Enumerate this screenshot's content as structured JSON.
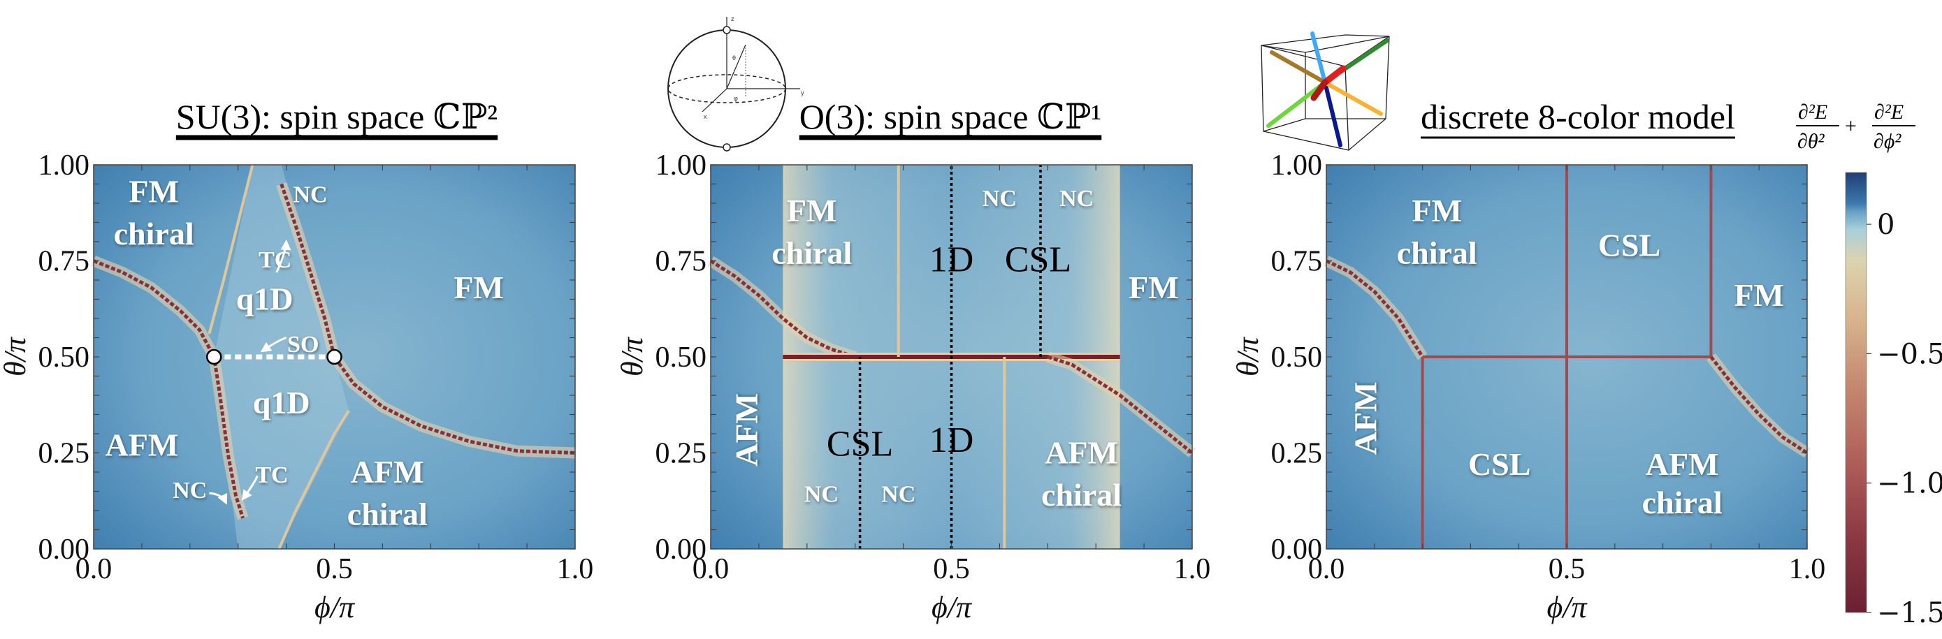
{
  "colors": {
    "background_blue": "#6aa2c6",
    "background_light": "#86b5ce",
    "background_dark": "#3f7eb0",
    "boundary_red": "#8a2f37",
    "boundary_halo": "#e6d2aa",
    "label_white": "#ffffff"
  },
  "icons": {
    "sphere": {
      "name": "bloch-sphere-icon",
      "labels": {
        "z": "z",
        "y": "y",
        "x": "x",
        "theta": "θ",
        "phi": "φ"
      }
    },
    "cube": {
      "name": "eight-color-cube-icon",
      "arrow_colors": [
        "#3fa9f5",
        "#0a1a8c",
        "#a8782a",
        "#f9b233",
        "#2e8b2e",
        "#6fd63a",
        "#e02020",
        "#b01818"
      ]
    }
  },
  "colorbar": {
    "label": "∂²E/∂θ² + ∂²E/∂ϕ²",
    "label_num1": "∂²E",
    "label_den1": "∂θ²",
    "label_plus": "+",
    "label_num2": "∂²E",
    "label_den2": "∂ϕ²",
    "range": [
      -1.5,
      0.2
    ],
    "ticks": [
      0,
      -0.5,
      -1.0,
      -1.5
    ],
    "tick_labels": [
      "0",
      "−0.5",
      "−1.0",
      "−1.5"
    ],
    "colormap": [
      "#213f75",
      "#3b78ad",
      "#6aa2c6",
      "#a8d0d8",
      "#dcd3b0",
      "#d8b48e",
      "#c48a70",
      "#b0605a",
      "#8e3a44",
      "#6a2032"
    ]
  },
  "chart_data": [
    {
      "type": "heatmap",
      "title": "SU(3): spin space ℂℙ²",
      "xlabel": "ϕ/π",
      "ylabel": "θ/π",
      "xlim": [
        0,
        1
      ],
      "ylim": [
        0,
        1
      ],
      "x_ticks": [
        0.0,
        0.5,
        1.0
      ],
      "x_tick_labels": [
        "0.0",
        "0.5",
        "1.0"
      ],
      "y_ticks": [
        0,
        0.25,
        0.5,
        0.75,
        1.0
      ],
      "y_tick_labels": [
        "0.00",
        "0.25",
        "0.50",
        "0.75",
        "1.00"
      ],
      "grid": false,
      "boundaries": [
        {
          "style": "major",
          "points": [
            [
              0,
              0.75
            ],
            [
              0.06,
              0.72
            ],
            [
              0.12,
              0.68
            ],
            [
              0.18,
              0.62
            ],
            [
              0.22,
              0.57
            ],
            [
              0.25,
              0.5
            ],
            [
              0.26,
              0.42
            ],
            [
              0.27,
              0.33
            ],
            [
              0.28,
              0.24
            ],
            [
              0.295,
              0.14
            ],
            [
              0.31,
              0.08
            ]
          ]
        },
        {
          "style": "major",
          "points": [
            [
              0.39,
              0.95
            ],
            [
              0.42,
              0.84
            ],
            [
              0.45,
              0.72
            ],
            [
              0.48,
              0.6
            ],
            [
              0.5,
              0.5
            ],
            [
              0.54,
              0.43
            ],
            [
              0.6,
              0.37
            ],
            [
              0.68,
              0.32
            ],
            [
              0.78,
              0.28
            ],
            [
              0.88,
              0.255
            ],
            [
              1.0,
              0.25
            ]
          ]
        },
        {
          "style": "minor",
          "points": [
            [
              0.24,
              0.56
            ],
            [
              0.27,
              0.7
            ],
            [
              0.3,
              0.85
            ],
            [
              0.33,
              1.0
            ]
          ]
        },
        {
          "style": "minor",
          "points": [
            [
              0.385,
              0.0
            ],
            [
              0.42,
              0.1
            ],
            [
              0.46,
              0.2
            ],
            [
              0.5,
              0.3
            ],
            [
              0.53,
              0.36
            ]
          ]
        },
        {
          "style": "so-dotted",
          "points": [
            [
              0.25,
              0.5
            ],
            [
              0.5,
              0.5
            ]
          ]
        }
      ],
      "markers": [
        [
          0.25,
          0.5
        ],
        [
          0.5,
          0.5
        ]
      ],
      "annotations": [
        {
          "text": "FM",
          "at": [
            0.125,
            0.93
          ],
          "size": "large"
        },
        {
          "text": "chiral",
          "at": [
            0.125,
            0.82
          ],
          "size": "large"
        },
        {
          "text": "NC",
          "at": [
            0.45,
            0.93
          ],
          "size": "small"
        },
        {
          "text": "TC",
          "at": [
            0.377,
            0.76
          ],
          "size": "small"
        },
        {
          "text": "q1D",
          "at": [
            0.355,
            0.65
          ],
          "size": "large"
        },
        {
          "text": "FM",
          "at": [
            0.8,
            0.68
          ],
          "size": "large"
        },
        {
          "text": "SO",
          "at": [
            0.435,
            0.54
          ],
          "size": "small"
        },
        {
          "text": "q1D",
          "at": [
            0.39,
            0.38
          ],
          "size": "large"
        },
        {
          "text": "AFM",
          "at": [
            0.1,
            0.27
          ],
          "size": "large"
        },
        {
          "text": "TC",
          "at": [
            0.37,
            0.2
          ],
          "size": "small"
        },
        {
          "text": "NC",
          "at": [
            0.2,
            0.16
          ],
          "size": "small"
        },
        {
          "text": "AFM",
          "at": [
            0.61,
            0.2
          ],
          "size": "large"
        },
        {
          "text": "chiral",
          "at": [
            0.61,
            0.09
          ],
          "size": "large"
        }
      ]
    },
    {
      "type": "heatmap",
      "title": "O(3): spin space ℂℙ¹",
      "xlabel": "ϕ/π",
      "ylabel": "θ/π",
      "xlim": [
        0,
        1
      ],
      "ylim": [
        0,
        1
      ],
      "x_ticks": [
        0.0,
        0.5,
        1.0
      ],
      "x_tick_labels": [
        "0.0",
        "0.5",
        "1.0"
      ],
      "y_ticks": [
        0,
        0.25,
        0.5,
        0.75,
        1.0
      ],
      "y_tick_labels": [
        "0.00",
        "0.25",
        "0.50",
        "0.75",
        "1.00"
      ],
      "grid": false,
      "light_band": [
        0.15,
        0.85
      ],
      "boundaries": [
        {
          "style": "major",
          "points": [
            [
              0,
              0.75
            ],
            [
              0.05,
              0.71
            ],
            [
              0.1,
              0.66
            ],
            [
              0.15,
              0.6
            ],
            [
              0.2,
              0.55
            ],
            [
              0.25,
              0.52
            ],
            [
              0.3,
              0.5
            ]
          ]
        },
        {
          "style": "thick",
          "points": [
            [
              0.15,
              0.5
            ],
            [
              0.85,
              0.5
            ]
          ]
        },
        {
          "style": "major",
          "points": [
            [
              0.7,
              0.5
            ],
            [
              0.75,
              0.48
            ],
            [
              0.8,
              0.44
            ],
            [
              0.85,
              0.4
            ],
            [
              0.9,
              0.35
            ],
            [
              0.95,
              0.3
            ],
            [
              1.0,
              0.25
            ]
          ]
        },
        {
          "style": "minor",
          "points": [
            [
              0.39,
              0.5
            ],
            [
              0.39,
              1.0
            ]
          ]
        },
        {
          "style": "minor",
          "points": [
            [
              0.61,
              0.0
            ],
            [
              0.61,
              0.5
            ]
          ]
        },
        {
          "style": "black-dotted",
          "points": [
            [
              0.5,
              0
            ],
            [
              0.5,
              1
            ]
          ]
        },
        {
          "style": "black-dotted",
          "points": [
            [
              0.31,
              0
            ],
            [
              0.31,
              0.5
            ]
          ]
        },
        {
          "style": "black-dotted",
          "points": [
            [
              0.685,
              0.5
            ],
            [
              0.685,
              1
            ]
          ]
        }
      ],
      "annotations": [
        {
          "text": "FM",
          "at": [
            0.21,
            0.88
          ],
          "size": "large"
        },
        {
          "text": "chiral",
          "at": [
            0.21,
            0.77
          ],
          "size": "large"
        },
        {
          "text": "NC",
          "at": [
            0.6,
            0.92
          ],
          "size": "medium"
        },
        {
          "text": "NC",
          "at": [
            0.76,
            0.92
          ],
          "size": "medium"
        },
        {
          "text": "1D",
          "at": [
            0.5,
            0.75
          ],
          "size": "dark"
        },
        {
          "text": "CSL",
          "at": [
            0.68,
            0.75
          ],
          "size": "dark"
        },
        {
          "text": "FM",
          "at": [
            0.92,
            0.68
          ],
          "size": "large"
        },
        {
          "text": "AFM",
          "at": [
            0.075,
            0.31
          ],
          "size": "rotated"
        },
        {
          "text": "CSL",
          "at": [
            0.31,
            0.27
          ],
          "size": "dark"
        },
        {
          "text": "1D",
          "at": [
            0.5,
            0.28
          ],
          "size": "dark"
        },
        {
          "text": "NC",
          "at": [
            0.23,
            0.15
          ],
          "size": "medium"
        },
        {
          "text": "NC",
          "at": [
            0.39,
            0.15
          ],
          "size": "medium"
        },
        {
          "text": "AFM",
          "at": [
            0.77,
            0.25
          ],
          "size": "large"
        },
        {
          "text": "chiral",
          "at": [
            0.77,
            0.14
          ],
          "size": "large"
        }
      ]
    },
    {
      "type": "heatmap",
      "title": "discrete 8-color model",
      "xlabel": "ϕ/π",
      "ylabel": "θ/π",
      "xlim": [
        0,
        1
      ],
      "ylim": [
        0,
        1
      ],
      "x_ticks": [
        0.0,
        0.5,
        1.0
      ],
      "x_tick_labels": [
        "0.0",
        "0.5",
        "1.0"
      ],
      "y_ticks": [
        0,
        0.25,
        0.5,
        0.75,
        1.0
      ],
      "y_tick_labels": [
        "0.00",
        "0.25",
        "0.50",
        "0.75",
        "1.00"
      ],
      "grid": false,
      "boundaries": [
        {
          "style": "major",
          "points": [
            [
              0,
              0.75
            ],
            [
              0.05,
              0.72
            ],
            [
              0.1,
              0.67
            ],
            [
              0.15,
              0.6
            ],
            [
              0.2,
              0.5
            ]
          ]
        },
        {
          "style": "thin-red",
          "points": [
            [
              0.2,
              0.5
            ],
            [
              0.8,
              0.5
            ]
          ]
        },
        {
          "style": "thin-red",
          "points": [
            [
              0.2,
              0.0
            ],
            [
              0.2,
              0.5
            ]
          ]
        },
        {
          "style": "thin-red",
          "points": [
            [
              0.5,
              0.0
            ],
            [
              0.5,
              1.0
            ]
          ]
        },
        {
          "style": "thin-red",
          "points": [
            [
              0.8,
              0.5
            ],
            [
              0.8,
              1.0
            ]
          ]
        },
        {
          "style": "major",
          "points": [
            [
              0.8,
              0.5
            ],
            [
              0.85,
              0.42
            ],
            [
              0.9,
              0.35
            ],
            [
              0.95,
              0.29
            ],
            [
              1.0,
              0.25
            ]
          ]
        }
      ],
      "annotations": [
        {
          "text": "FM",
          "at": [
            0.23,
            0.88
          ],
          "size": "large"
        },
        {
          "text": "chiral",
          "at": [
            0.23,
            0.77
          ],
          "size": "large"
        },
        {
          "text": "CSL",
          "at": [
            0.63,
            0.79
          ],
          "size": "large"
        },
        {
          "text": "FM",
          "at": [
            0.9,
            0.66
          ],
          "size": "large"
        },
        {
          "text": "AFM",
          "at": [
            0.082,
            0.34
          ],
          "size": "rotated"
        },
        {
          "text": "CSL",
          "at": [
            0.36,
            0.22
          ],
          "size": "large"
        },
        {
          "text": "AFM",
          "at": [
            0.74,
            0.22
          ],
          "size": "large"
        },
        {
          "text": "chiral",
          "at": [
            0.74,
            0.12
          ],
          "size": "large"
        }
      ]
    }
  ]
}
